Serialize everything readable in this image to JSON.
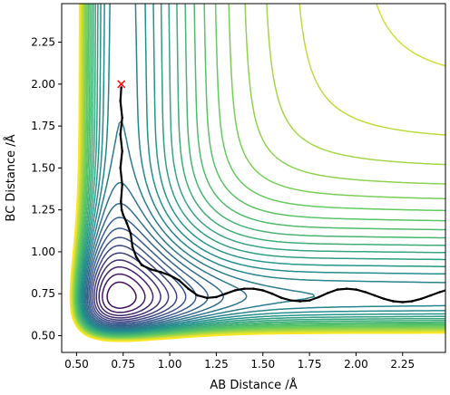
{
  "chart_data": {
    "type": "contour",
    "xlabel": "AB Distance /Å",
    "ylabel": "BC Distance /Å",
    "xlim": [
      0.42,
      2.48
    ],
    "ylim": [
      0.4,
      2.48
    ],
    "x_ticks": [
      "0.50",
      "0.75",
      "1.00",
      "1.25",
      "1.50",
      "1.75",
      "2.00",
      "2.25"
    ],
    "y_ticks": [
      "0.50",
      "0.75",
      "1.00",
      "1.25",
      "1.50",
      "1.75",
      "2.00",
      "2.25"
    ],
    "colormap": "viridis",
    "colormap_colors": [
      "#440154",
      "#3b528b",
      "#21918c",
      "#5ec962",
      "#fde725"
    ],
    "contour_levels": 30,
    "start_marker": {
      "symbol": "x",
      "color": "#ff0000",
      "x": 0.74,
      "y": 2.0
    },
    "trajectory_color": "#000000",
    "trajectory": [
      [
        0.74,
        1.98
      ],
      [
        0.735,
        1.9
      ],
      [
        0.745,
        1.8
      ],
      [
        0.735,
        1.7
      ],
      [
        0.745,
        1.6
      ],
      [
        0.735,
        1.5
      ],
      [
        0.745,
        1.4
      ],
      [
        0.738,
        1.3
      ],
      [
        0.742,
        1.25
      ],
      [
        0.75,
        1.22
      ],
      [
        0.77,
        1.17
      ],
      [
        0.79,
        1.11
      ],
      [
        0.8,
        1.03
      ],
      [
        0.82,
        0.97
      ],
      [
        0.85,
        0.92
      ],
      [
        0.9,
        0.895
      ],
      [
        0.95,
        0.88
      ],
      [
        1.0,
        0.86
      ],
      [
        1.05,
        0.83
      ],
      [
        1.1,
        0.78
      ],
      [
        1.15,
        0.74
      ],
      [
        1.2,
        0.725
      ],
      [
        1.25,
        0.73
      ],
      [
        1.3,
        0.75
      ],
      [
        1.35,
        0.77
      ],
      [
        1.4,
        0.78
      ],
      [
        1.45,
        0.78
      ],
      [
        1.5,
        0.77
      ],
      [
        1.55,
        0.75
      ],
      [
        1.6,
        0.725
      ],
      [
        1.65,
        0.71
      ],
      [
        1.7,
        0.705
      ],
      [
        1.75,
        0.71
      ],
      [
        1.8,
        0.73
      ],
      [
        1.85,
        0.755
      ],
      [
        1.9,
        0.775
      ],
      [
        1.95,
        0.78
      ],
      [
        2.0,
        0.775
      ],
      [
        2.05,
        0.76
      ],
      [
        2.1,
        0.74
      ],
      [
        2.15,
        0.72
      ],
      [
        2.2,
        0.705
      ],
      [
        2.25,
        0.7
      ],
      [
        2.3,
        0.705
      ],
      [
        2.35,
        0.72
      ],
      [
        2.4,
        0.74
      ],
      [
        2.45,
        0.76
      ],
      [
        2.48,
        0.77
      ]
    ]
  }
}
